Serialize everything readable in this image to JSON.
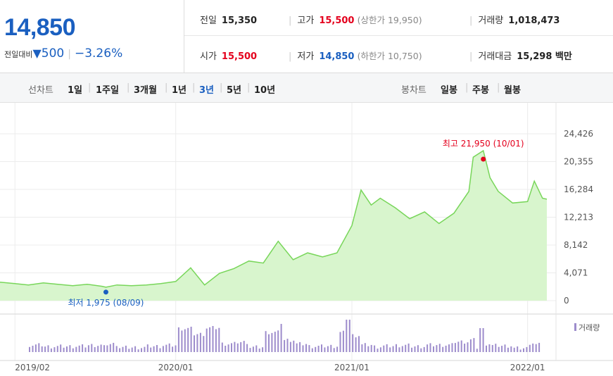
{
  "summary": {
    "price": "14,850",
    "change_label": "전일대비",
    "change_arrow": "▼",
    "change_value": "500",
    "change_pct": "−3.26%"
  },
  "stats": {
    "prev_close": {
      "label": "전일",
      "value": "15,350"
    },
    "high": {
      "label": "고가",
      "value": "15,500",
      "sub": "(상한가 19,950)"
    },
    "volume": {
      "label": "거래량",
      "value": "1,018,473"
    },
    "open": {
      "label": "시가",
      "value": "15,500"
    },
    "low": {
      "label": "저가",
      "value": "14,850",
      "sub": "(하한가 10,750)"
    },
    "turnover": {
      "label": "거래대금",
      "value": "15,298 백만"
    }
  },
  "toolbar": {
    "line_label": "선차트",
    "line_options": [
      "1일",
      "1주일",
      "3개월",
      "1년",
      "3년",
      "5년",
      "10년"
    ],
    "line_active": "3년",
    "candle_label": "봉차트",
    "candle_options": [
      "일봉",
      "주봉",
      "월봉"
    ]
  },
  "colors": {
    "down": "#1a5fc0",
    "up": "#e4001d",
    "line": "#78d65a",
    "area": "#d8f5cd",
    "volume": "#9d8ccc"
  },
  "chart_data": {
    "type": "area",
    "title": "",
    "xlabel": "",
    "ylabel": "",
    "ylim": [
      0,
      24426
    ],
    "y_ticks": [
      "24,426",
      "20,355",
      "16,284",
      "12,213",
      "8,142",
      "4,071",
      "0"
    ],
    "x_ticks": [
      "2019/02",
      "2020/01",
      "2021/01",
      "2022/01"
    ],
    "x_range": [
      "2019/01",
      "2022/03"
    ],
    "annotations": {
      "high": {
        "label": "최고 21,950 (10/01)",
        "date": "2021-10-01",
        "value": 21950
      },
      "low": {
        "label": "최저 1,975 (08/09)",
        "date": "2019-08-09",
        "value": 1975
      }
    },
    "series": [
      {
        "dates": [
          "2019-01-01",
          "2019-02-01",
          "2019-03-01",
          "2019-04-01",
          "2019-05-01",
          "2019-06-01",
          "2019-07-01",
          "2019-08-01",
          "2019-08-09",
          "2019-09-01",
          "2019-10-01",
          "2019-11-01",
          "2019-12-01",
          "2020-01-01",
          "2020-02-01",
          "2020-03-01",
          "2020-04-01",
          "2020-05-01",
          "2020-06-01",
          "2020-07-01",
          "2020-08-01",
          "2020-09-01",
          "2020-10-01",
          "2020-11-01",
          "2020-12-01",
          "2021-01-01",
          "2021-01-20",
          "2021-02-10",
          "2021-03-01",
          "2021-04-01",
          "2021-05-01",
          "2021-06-01",
          "2021-07-01",
          "2021-08-01",
          "2021-09-01",
          "2021-09-10",
          "2021-10-01",
          "2021-10-15",
          "2021-11-01",
          "2021-12-01",
          "2022-01-01",
          "2022-01-15",
          "2022-02-01",
          "2022-02-10"
        ],
        "values": [
          2700,
          2500,
          2300,
          2600,
          2400,
          2200,
          2400,
          2100,
          1975,
          2300,
          2200,
          2300,
          2500,
          2800,
          4800,
          2300,
          4000,
          4700,
          5800,
          5500,
          8700,
          6000,
          7000,
          6400,
          7000,
          11000,
          16200,
          14000,
          15000,
          13600,
          12000,
          13000,
          11300,
          12800,
          16000,
          21000,
          21950,
          18000,
          16000,
          14300,
          14500,
          17500,
          15000,
          14850
        ]
      }
    ],
    "volume_legend": "거래량"
  }
}
